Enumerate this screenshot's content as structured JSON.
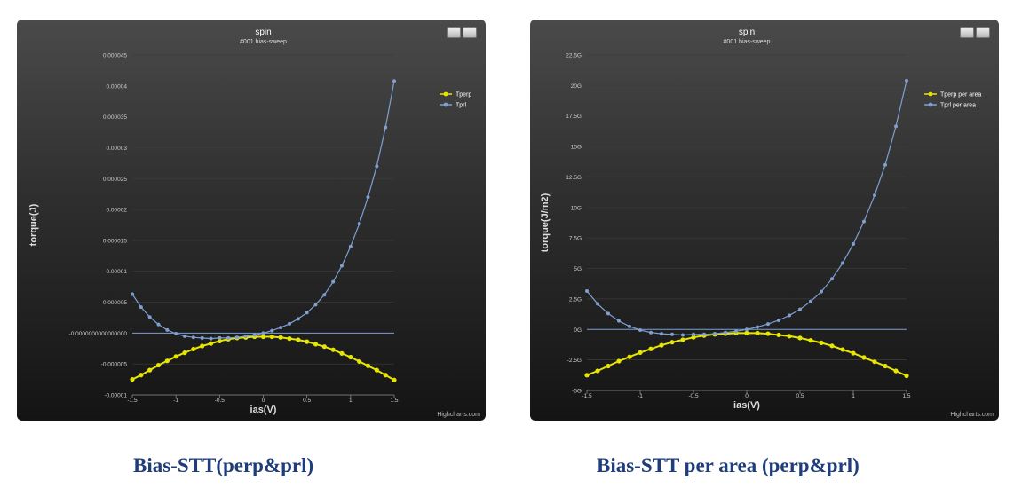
{
  "charts": [
    {
      "title": "spin",
      "subtitle": "#001 bias-sweep",
      "credits": "Highcharts.com",
      "caption": "Bias-STT(perp&prl)",
      "chart_data": {
        "type": "line",
        "title": "spin",
        "subtitle": "#001 bias-sweep",
        "xlabel": "ias(V)",
        "ylabel": "torque(J)",
        "xlim": [
          -1.5,
          1.5
        ],
        "ylim": [
          -1e-05,
          4.5e-05
        ],
        "x_ticks": [
          -1.5,
          -1,
          -0.5,
          0,
          0.5,
          1,
          1.5
        ],
        "x_tick_labels": [
          "-1.5",
          "-1",
          "-0.5",
          "0",
          "0.5",
          "1",
          "1.5"
        ],
        "y_ticks": [
          -1e-05,
          -5e-06,
          0,
          5e-06,
          1e-05,
          1.5e-05,
          2e-05,
          2.5e-05,
          3e-05,
          3.5e-05,
          4e-05,
          4.5e-05
        ],
        "y_tick_labels": [
          "-0.00001",
          "-0.000005",
          "-0.0000000000000000",
          "0.000005",
          "0.00001",
          "0.000015",
          "0.00002",
          "0.000025",
          "0.00003",
          "0.000035",
          "0.00004",
          "0.000045"
        ],
        "legend_position": "top-right",
        "grid": true,
        "x": [
          -1.5,
          -1.4,
          -1.3,
          -1.2,
          -1.1,
          -1.0,
          -0.9,
          -0.8,
          -0.7,
          -0.6,
          -0.5,
          -0.4,
          -0.3,
          -0.2,
          -0.1,
          0.0,
          0.1,
          0.2,
          0.3,
          0.4,
          0.5,
          0.6,
          0.7,
          0.8,
          0.9,
          1.0,
          1.1,
          1.2,
          1.3,
          1.4,
          1.5
        ],
        "series": [
          {
            "name": "Tperp",
            "color": "#e6e600",
            "values": [
              -7.5e-06,
              -6.8e-06,
              -6e-06,
              -5.2e-06,
              -4.5e-06,
              -3.8e-06,
              -3.2e-06,
              -2.6e-06,
              -2.1e-06,
              -1.7e-06,
              -1.3e-06,
              -1e-06,
              -8e-07,
              -7e-07,
              -6e-07,
              -6e-07,
              -6e-07,
              -7e-07,
              -9e-07,
              -1.1e-06,
              -1.4e-06,
              -1.8e-06,
              -2.2e-06,
              -2.7e-06,
              -3.3e-06,
              -3.9e-06,
              -4.6e-06,
              -5.3e-06,
              -6e-06,
              -6.8e-06,
              -7.6e-06
            ]
          },
          {
            "name": "Tprl",
            "color": "#7f9fd0",
            "values": [
              6.3e-06,
              4.2e-06,
              2.6e-06,
              1.4e-06,
              5e-07,
              -1e-07,
              -5e-07,
              -7e-07,
              -8e-07,
              -9e-07,
              -8e-07,
              -8e-07,
              -7e-07,
              -5e-07,
              -3e-07,
              0.0,
              4e-07,
              9e-07,
              1.5e-06,
              2.3e-06,
              3.3e-06,
              4.6e-06,
              6.2e-06,
              8.3e-06,
              1.09e-05,
              1.4e-05,
              1.77e-05,
              2.2e-05,
              2.7e-05,
              3.33e-05,
              4.08e-05
            ]
          }
        ]
      }
    },
    {
      "title": "spin",
      "subtitle": "#001 bias-sweep",
      "credits": "Highcharts.com",
      "caption": "Bias-STT per area (perp&prl)",
      "chart_data": {
        "type": "line",
        "title": "spin",
        "subtitle": "#001 bias-sweep",
        "xlabel": "ias(V)",
        "ylabel": "torque(J/m2)",
        "xlim": [
          -1.5,
          1.5
        ],
        "ylim": [
          -5,
          22.5
        ],
        "x_ticks": [
          -1.5,
          -1,
          -0.5,
          0,
          0.5,
          1,
          1.5
        ],
        "x_tick_labels": [
          "-1.5",
          "-1",
          "-0.5",
          "0",
          "0.5",
          "1",
          "1.5"
        ],
        "y_ticks": [
          -5,
          -2.5,
          0,
          2.5,
          5,
          7.5,
          10,
          12.5,
          15,
          17.5,
          20,
          22.5
        ],
        "y_tick_labels": [
          "-5G",
          "-2.5G",
          "0G",
          "2.5G",
          "5G",
          "7.5G",
          "10G",
          "12.5G",
          "15G",
          "17.5G",
          "20G",
          "22.5G"
        ],
        "y_unit": "G",
        "legend_position": "top-right",
        "grid": true,
        "x": [
          -1.5,
          -1.4,
          -1.3,
          -1.2,
          -1.1,
          -1.0,
          -0.9,
          -0.8,
          -0.7,
          -0.6,
          -0.5,
          -0.4,
          -0.3,
          -0.2,
          -0.1,
          0.0,
          0.1,
          0.2,
          0.3,
          0.4,
          0.5,
          0.6,
          0.7,
          0.8,
          0.9,
          1.0,
          1.1,
          1.2,
          1.3,
          1.4,
          1.5
        ],
        "series": [
          {
            "name": "Tperp per area",
            "color": "#e6e600",
            "values": [
              -3.75,
              -3.4,
              -3.0,
              -2.6,
              -2.25,
              -1.9,
              -1.6,
              -1.3,
              -1.05,
              -0.85,
              -0.65,
              -0.5,
              -0.4,
              -0.35,
              -0.3,
              -0.3,
              -0.3,
              -0.35,
              -0.45,
              -0.55,
              -0.7,
              -0.9,
              -1.1,
              -1.35,
              -1.65,
              -1.95,
              -2.3,
              -2.65,
              -3.0,
              -3.4,
              -3.8
            ]
          },
          {
            "name": "Tprl per area",
            "color": "#7f9fd0",
            "values": [
              3.15,
              2.1,
              1.3,
              0.7,
              0.25,
              -0.05,
              -0.25,
              -0.35,
              -0.4,
              -0.45,
              -0.4,
              -0.4,
              -0.35,
              -0.25,
              -0.15,
              0.0,
              0.2,
              0.45,
              0.75,
              1.15,
              1.65,
              2.3,
              3.1,
              4.15,
              5.45,
              7.0,
              8.85,
              11.0,
              13.5,
              16.65,
              20.4
            ]
          }
        ]
      }
    }
  ]
}
